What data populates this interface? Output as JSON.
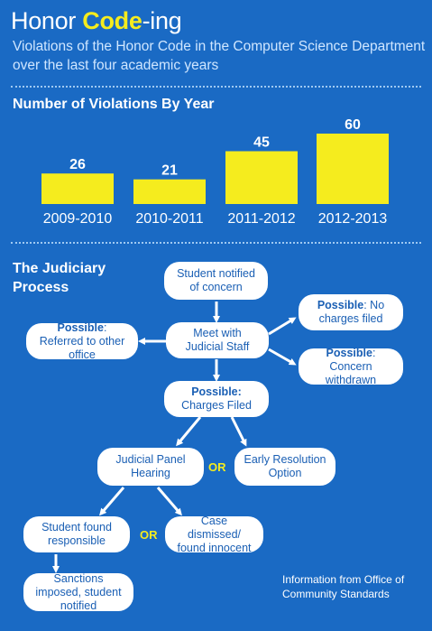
{
  "header": {
    "title_prefix": "Honor ",
    "title_highlight": "Code",
    "title_suffix": "-ing",
    "subtitle": "Violations of the Honor Code in the Computer Science Department over the last four academic years"
  },
  "chart_data": {
    "type": "bar",
    "title": "Number of Violations By Year",
    "categories": [
      "2009-2010",
      "2010-2011",
      "2011-2012",
      "2012-2013"
    ],
    "values": [
      26,
      21,
      45,
      60
    ],
    "ylim": [
      0,
      60
    ],
    "bar_color": "#f5ec1e",
    "data_labels": true,
    "grid": false
  },
  "judiciary": {
    "title_line1": "The Judiciary",
    "title_line2": "Process",
    "nodes": {
      "notified": "Student notified of concern",
      "meet": "Meet with Judicial Staff",
      "referred_bold": "Possible",
      "referred_rest": ": Referred to other office",
      "nocharges_bold": "Possible",
      "nocharges_rest": ": No charges filed",
      "withdrawn_bold": "Possible",
      "withdrawn_rest": ": Concern withdrawn",
      "charges_bold": "Possible:",
      "charges_rest": "Charges Filed",
      "panel": "Judicial Panel Hearing",
      "early": "Early Resolution Option",
      "responsible": "Student found responsible",
      "dismissed": "Case dismissed/ found innocent",
      "sanctions": "Sanctions imposed, student notified"
    },
    "or_label": "OR"
  },
  "source": "Information from Office of Community Standards",
  "colors": {
    "background": "#1a6ac4",
    "accent": "#f5ec1e",
    "node_text": "#1a5fb4",
    "subtitle": "#cfe6ff"
  }
}
